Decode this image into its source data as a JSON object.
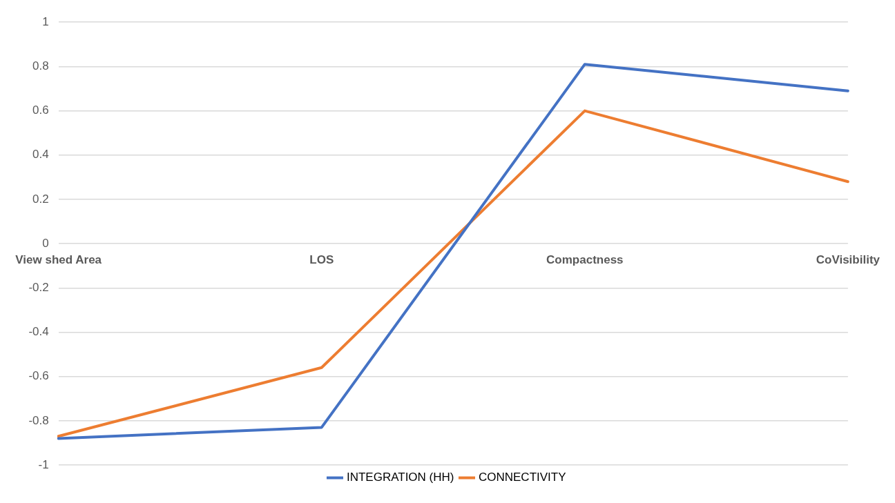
{
  "chart_data": {
    "type": "line",
    "categories": [
      "View shed Area",
      "LOS",
      "Compactness",
      "CoVisibility"
    ],
    "series": [
      {
        "name": "INTEGRATION (HH)",
        "color": "#4472c4",
        "values": [
          -0.88,
          -0.83,
          0.81,
          0.69
        ]
      },
      {
        "name": "CONNECTIVITY",
        "color": "#ed7d31",
        "values": [
          -0.87,
          -0.56,
          0.6,
          0.28
        ]
      }
    ],
    "ylim": [
      -1,
      1
    ],
    "yticks": [
      -1,
      -0.8,
      -0.6,
      -0.4,
      -0.2,
      0,
      0.2,
      0.4,
      0.6,
      0.8,
      1
    ],
    "grid": "y",
    "legend": "bottom",
    "marker": "none",
    "line_style": "solid"
  }
}
